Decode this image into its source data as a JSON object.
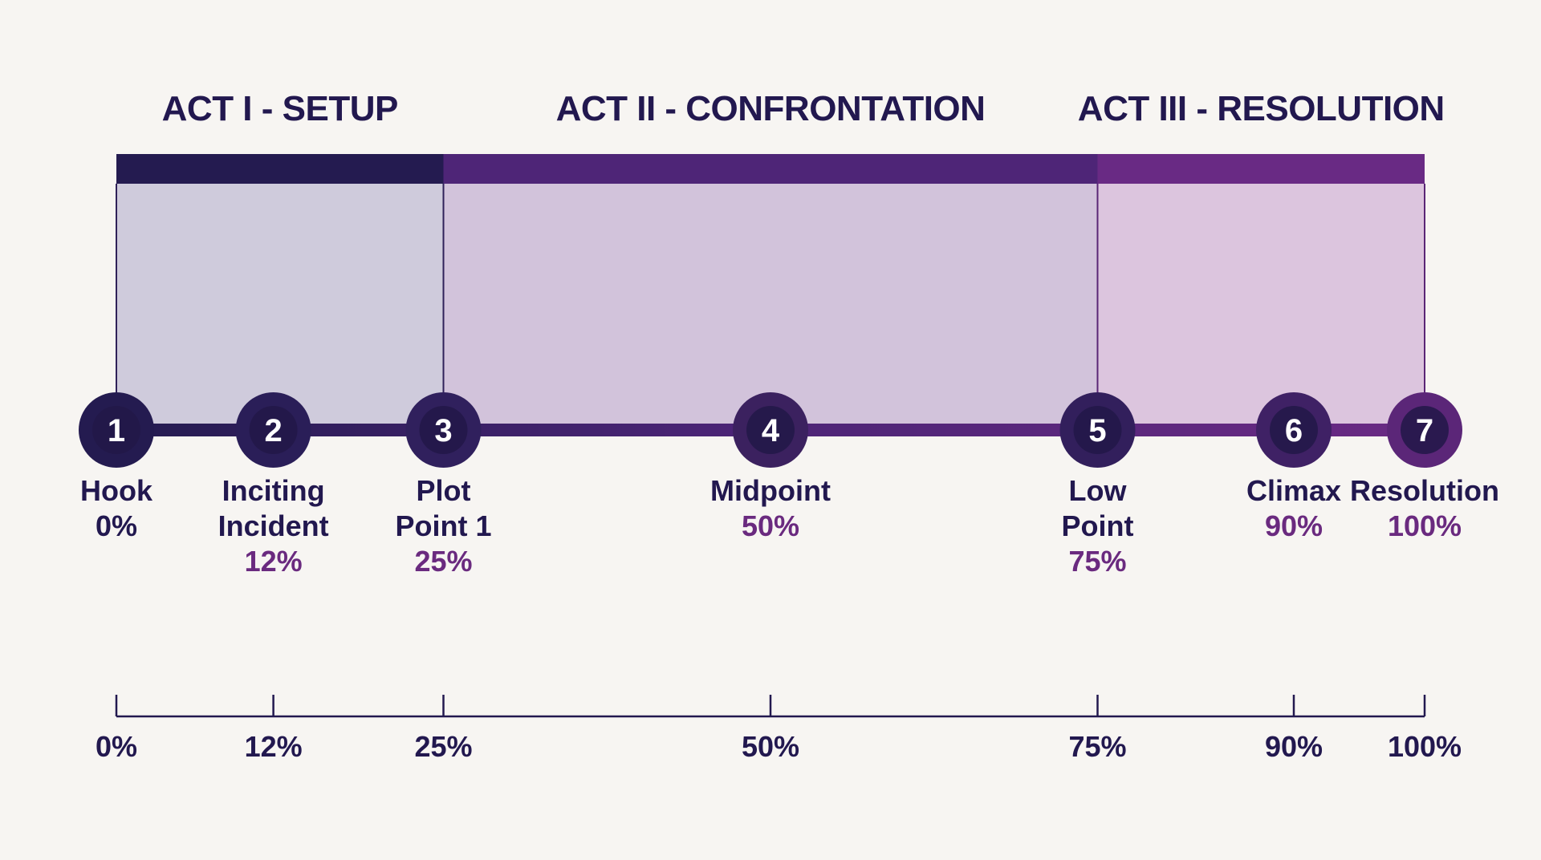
{
  "acts": [
    {
      "title": "ACT I - SETUP",
      "start": 0,
      "end": 25,
      "bar_color": "#241b50",
      "fill_color": "#cfcbdc"
    },
    {
      "title": "ACT II - CONFRONTATION",
      "start": 25,
      "end": 75,
      "bar_color": "#4e2577",
      "fill_color": "#d2c3db"
    },
    {
      "title": "ACT III - RESOLUTION",
      "start": 75,
      "end": 100,
      "bar_color": "#692a84",
      "fill_color": "#dcc5de"
    }
  ],
  "beats": [
    {
      "number": "1",
      "lines": [
        "Hook",
        "0%"
      ],
      "percent_line": -1,
      "position": 0,
      "color": "#241b50"
    },
    {
      "number": "2",
      "lines": [
        "Inciting",
        "Incident",
        "12%"
      ],
      "percent_line": 2,
      "position": 12,
      "color": "#2a1e58"
    },
    {
      "number": "3",
      "lines": [
        "Plot",
        "Point 1",
        "25%"
      ],
      "percent_line": 2,
      "position": 25,
      "color": "#30205d"
    },
    {
      "number": "4",
      "lines": [
        "Midpoint",
        "50%"
      ],
      "percent_line": 1,
      "position": 50,
      "color": "#3b215f"
    },
    {
      "number": "5",
      "lines": [
        "Low",
        "Point",
        "75%"
      ],
      "percent_line": 2,
      "position": 75,
      "color": "#321f5c"
    },
    {
      "number": "6",
      "lines": [
        "Climax",
        "90%"
      ],
      "percent_line": 1,
      "position": 90,
      "color": "#3f2165"
    },
    {
      "number": "7",
      "lines": [
        "Resolution",
        "100%"
      ],
      "percent_line": 1,
      "position": 100,
      "color": "#5b2678"
    }
  ],
  "axis": {
    "ticks": [
      0,
      12,
      25,
      50,
      75,
      90,
      100
    ],
    "tick_labels": [
      "0%",
      "12%",
      "25%",
      "50%",
      "75%",
      "90%",
      "100%"
    ]
  },
  "colors": {
    "text": "#22184f",
    "percent_text": "#6a2a7f",
    "axis": "#22184f"
  }
}
